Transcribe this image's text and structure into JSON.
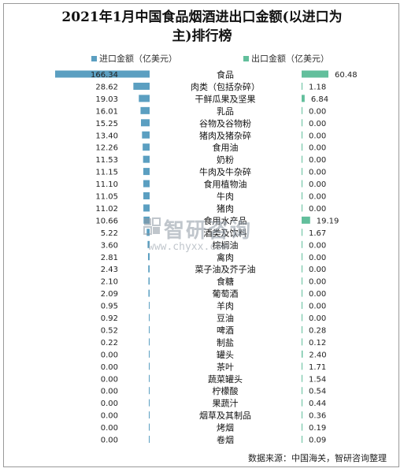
{
  "title": {
    "line1": "2021年1月中国食品烟酒进出口金额(以进口为",
    "line2": "主)排行榜"
  },
  "legend": {
    "import_label": "进口金额（亿美元）",
    "export_label": "出口金额（亿美元）"
  },
  "colors": {
    "import": "#5b9fc1",
    "export": "#62bf9c"
  },
  "watermark": {
    "name": "智研咨询",
    "url": "www.chyxx.com"
  },
  "source": "数据来源：中国海关，智研咨询整理",
  "chart_data": {
    "type": "bar",
    "categories": [
      "食品",
      "肉类（包括杂碎）",
      "干鲜瓜果及坚果",
      "乳品",
      "谷物及谷物粉",
      "猪肉及猪杂碎",
      "食用油",
      "奶粉",
      "牛肉及牛杂碎",
      "食用植物油",
      "牛肉",
      "猪肉",
      "食用水产品",
      "酒类及饮料",
      "棕榈油",
      "禽肉",
      "菜子油及芥子油",
      "食糖",
      "葡萄酒",
      "羊肉",
      "豆油",
      "啤酒",
      "制盐",
      "罐头",
      "茶叶",
      "蔬菜罐头",
      "柠檬酸",
      "果蔬汁",
      "烟草及其制品",
      "烤烟",
      "卷烟"
    ],
    "series": [
      {
        "name": "进口金额（亿美元）",
        "values": [
          166.34,
          28.62,
          19.03,
          16.01,
          15.25,
          13.4,
          12.26,
          11.53,
          11.15,
          11.1,
          11.05,
          11.02,
          10.66,
          5.22,
          3.6,
          2.81,
          2.43,
          2.1,
          2.09,
          0.95,
          0.92,
          0.52,
          0.22,
          0.0,
          0.0,
          0.0,
          0.0,
          0.0,
          0.0,
          0.0,
          0.0
        ]
      },
      {
        "name": "出口金额（亿美元）",
        "values": [
          60.48,
          1.18,
          6.84,
          0.0,
          0.0,
          0.0,
          0.0,
          0.0,
          0.0,
          0.0,
          0.0,
          0.0,
          19.19,
          1.67,
          0.0,
          0.0,
          0.0,
          0.0,
          0.0,
          0.0,
          0.0,
          0.28,
          0.12,
          2.4,
          1.71,
          1.54,
          0.54,
          0.44,
          0.36,
          0.19,
          0.09
        ]
      }
    ],
    "value_labels": {
      "import": [
        "166.34",
        "28.62",
        "19.03",
        "16.01",
        "15.25",
        "13.40",
        "12.26",
        "11.53",
        "11.15",
        "11.10",
        "11.05",
        "11.02",
        "10.66",
        "5.22",
        "3.60",
        "2.81",
        "2.43",
        "2.10",
        "2.09",
        "0.95",
        "0.92",
        "0.52",
        "0.22",
        "0.00",
        "0.00",
        "0.00",
        "0.00",
        "0.00",
        "0.00",
        "0.00",
        "0.00"
      ],
      "export": [
        "60.48",
        "1.18",
        "6.84",
        "0.00",
        "0.00",
        "0.00",
        "0.00",
        "0.00",
        "0.00",
        "0.00",
        "0.00",
        "0.00",
        "19.19",
        "1.67",
        "0.00",
        "0.00",
        "0.00",
        "0.00",
        "0.00",
        "0.00",
        "0.00",
        "0.28",
        "0.12",
        "2.40",
        "1.71",
        "1.54",
        "0.54",
        "0.44",
        "0.36",
        "0.19",
        "0.09"
      ]
    },
    "orientation": "horizontal-butterfly",
    "legend_position": "top",
    "grid": false
  }
}
